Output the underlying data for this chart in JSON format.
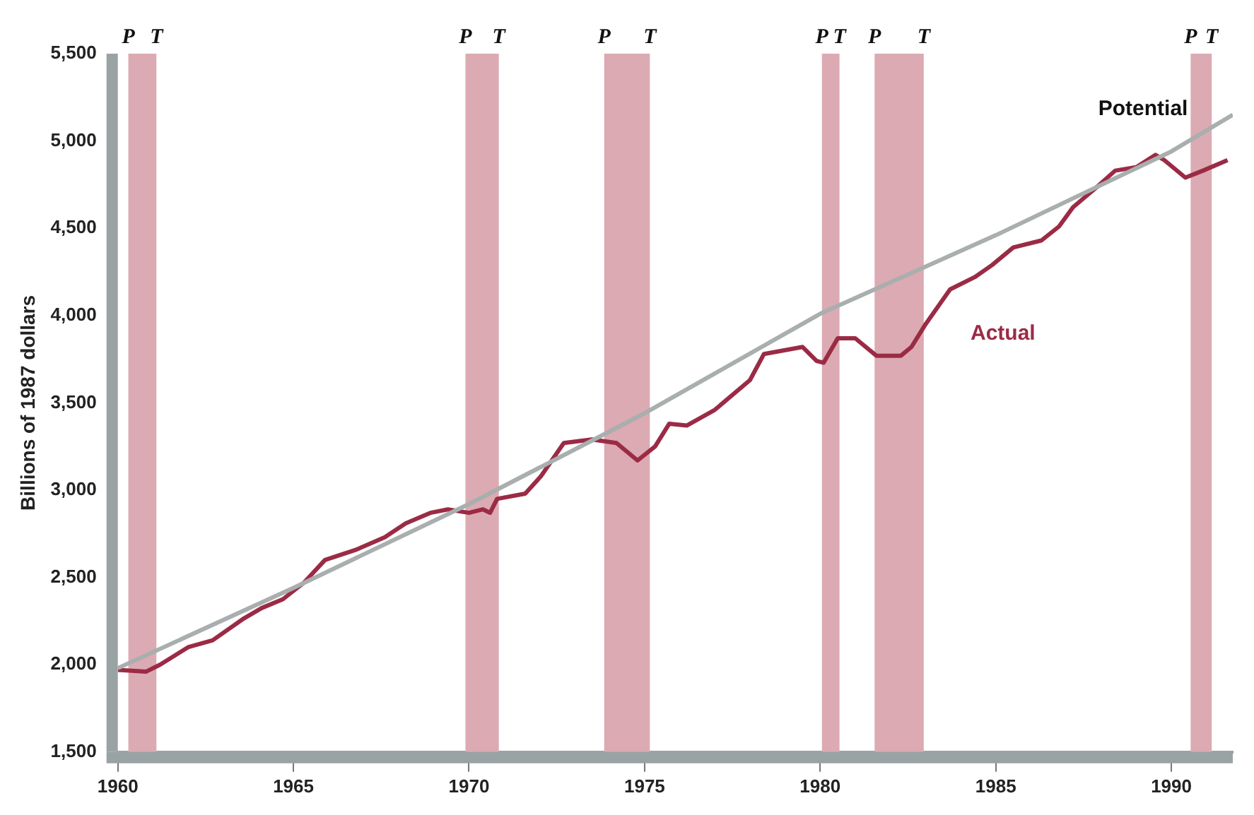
{
  "chart_data": {
    "type": "line",
    "ylabel": "Billions of 1987 dollars",
    "xlim": [
      1960,
      1991.75
    ],
    "xticks": [
      1960,
      1965,
      1970,
      1975,
      1980,
      1985,
      1990
    ],
    "ylim": [
      1500,
      5500
    ],
    "yticks": [
      {
        "value": 1500,
        "label": "1,500"
      },
      {
        "value": 2000,
        "label": "2,000"
      },
      {
        "value": 2500,
        "label": "2,500"
      },
      {
        "value": 3000,
        "label": "3,000"
      },
      {
        "value": 3500,
        "label": "3,500"
      },
      {
        "value": 4000,
        "label": "4,000"
      },
      {
        "value": 4500,
        "label": "4,500"
      },
      {
        "value": 5000,
        "label": "5,000"
      },
      {
        "value": 5500,
        "label": "5,500"
      }
    ],
    "grid": false,
    "legend": false,
    "marker": "none",
    "line_style": "solid",
    "series": [
      {
        "name": "Potential",
        "color": "#a9aeae",
        "x": [
          1960,
          1965,
          1970,
          1975,
          1980,
          1985,
          1990,
          1991.75
        ],
        "values": [
          1980,
          2440,
          2920,
          3440,
          4010,
          4460,
          4940,
          5150
        ]
      },
      {
        "name": "Actual",
        "color": "#9b2b45",
        "x": [
          1960,
          1960.8,
          1961.2,
          1962,
          1962.7,
          1963.55,
          1964.1,
          1964.7,
          1965.3,
          1965.9,
          1966.8,
          1967.6,
          1968.2,
          1968.9,
          1969.4,
          1970,
          1970.4,
          1970.6,
          1970.8,
          1971.6,
          1972.05,
          1972.7,
          1973.5,
          1974.2,
          1974.8,
          1975.3,
          1975.7,
          1976.2,
          1977,
          1978,
          1978.4,
          1979.5,
          1979.9,
          1980.1,
          1980.5,
          1981,
          1981.6,
          1982.3,
          1982.6,
          1983,
          1983.7,
          1984.4,
          1984.9,
          1985.5,
          1986.3,
          1986.8,
          1987.2,
          1987.9,
          1988.4,
          1989,
          1989.55,
          1989.8,
          1990.4,
          1990.9,
          1991.6
        ],
        "values": [
          1970,
          1960,
          2000,
          2100,
          2140,
          2260,
          2325,
          2375,
          2470,
          2600,
          2660,
          2730,
          2810,
          2870,
          2890,
          2870,
          2890,
          2870,
          2950,
          2980,
          3080,
          3270,
          3290,
          3270,
          3170,
          3250,
          3380,
          3370,
          3460,
          3630,
          3780,
          3820,
          3740,
          3730,
          3870,
          3870,
          3770,
          3770,
          3820,
          3950,
          4150,
          4220,
          4290,
          4390,
          4430,
          4510,
          4620,
          4740,
          4830,
          4850,
          4920,
          4890,
          4790,
          4830,
          4890
        ]
      }
    ],
    "bands": [
      {
        "axis": "x",
        "from": 1960.3,
        "to": 1961.1,
        "color": "#dcaab2"
      },
      {
        "axis": "x",
        "from": 1969.9,
        "to": 1970.85,
        "color": "#dcaab2"
      },
      {
        "axis": "x",
        "from": 1973.85,
        "to": 1975.15,
        "color": "#dcaab2"
      },
      {
        "axis": "x",
        "from": 1980.05,
        "to": 1980.55,
        "color": "#dcaab2"
      },
      {
        "axis": "x",
        "from": 1981.55,
        "to": 1982.95,
        "color": "#dcaab2"
      },
      {
        "axis": "x",
        "from": 1990.55,
        "to": 1991.15,
        "color": "#dcaab2"
      }
    ],
    "annotations": [
      "P",
      "T",
      "P",
      "T",
      "P",
      "T",
      "P",
      "T",
      "P",
      "T",
      "P",
      "T"
    ]
  }
}
